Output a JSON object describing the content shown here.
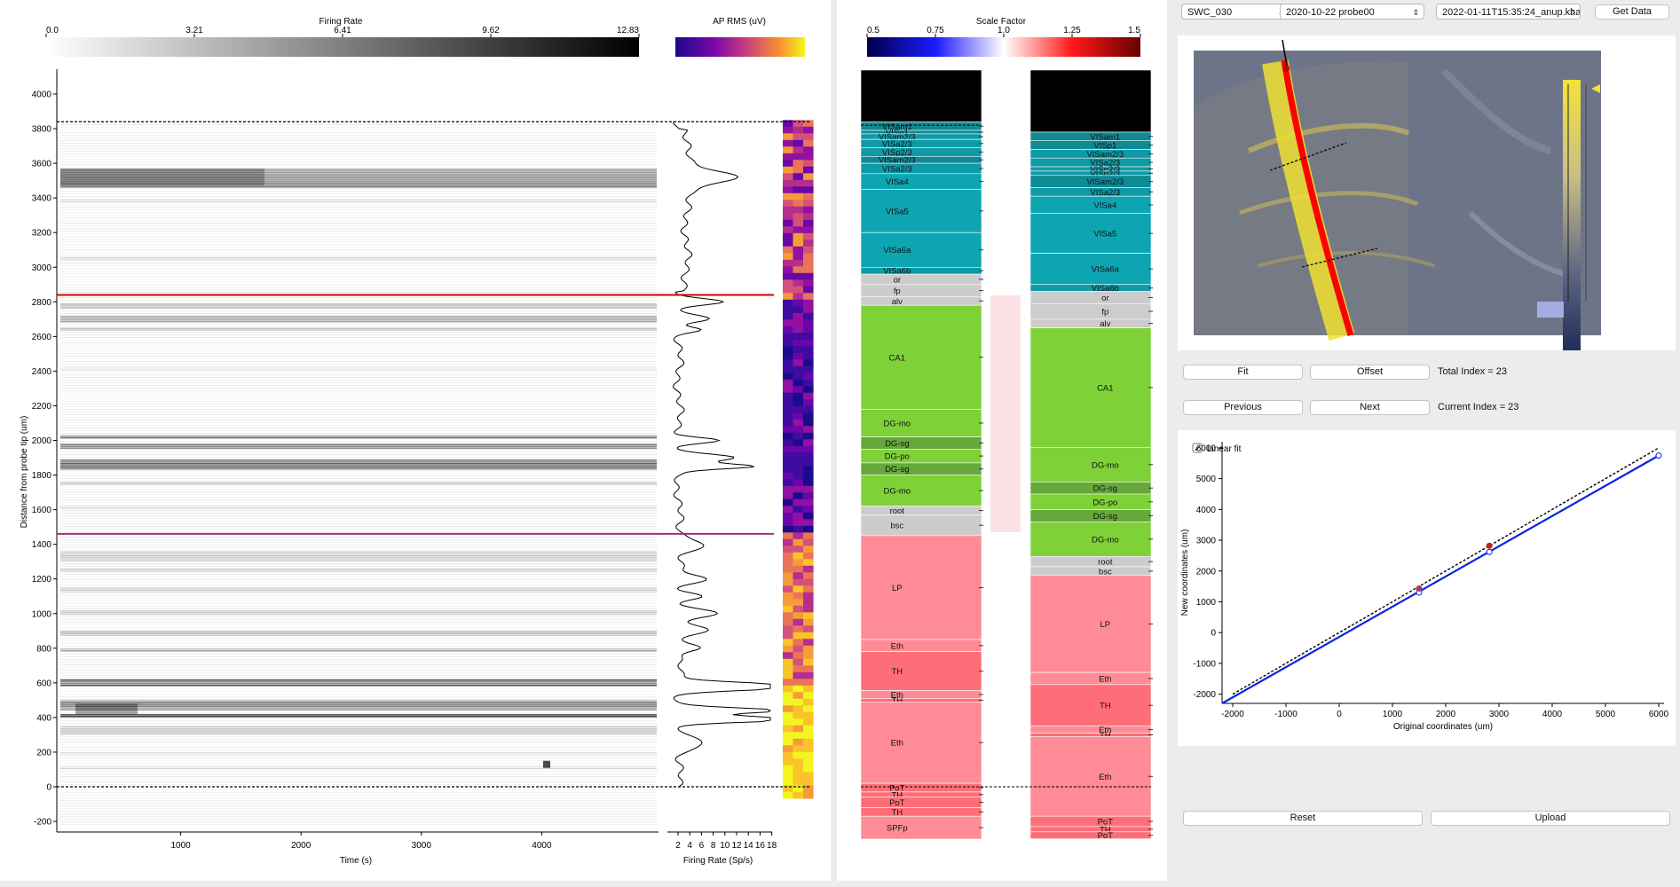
{
  "colors": {
    "accent_red": "#d40000",
    "accent_purple": "#a0307a",
    "fit_blue": "#0a22e6"
  },
  "panel1": {
    "fr_bar": {
      "title": "Firing Rate",
      "ticks": [
        "0.0",
        "3.21",
        "6.41",
        "9.62",
        "12.83"
      ]
    },
    "rms_bar": {
      "title": "AP RMS (uV)"
    },
    "raster": {
      "ylabel": "Distance from probe tip (um)",
      "xlabel": "Time (s)",
      "yticks": [
        "4000",
        "3800",
        "3600",
        "3400",
        "3200",
        "3000",
        "2800",
        "2600",
        "2400",
        "2200",
        "2000",
        "1800",
        "1600",
        "1400",
        "1200",
        "1000",
        "800",
        "600",
        "400",
        "200",
        "0",
        "-200"
      ],
      "xticks": [
        "1000",
        "2000",
        "3000",
        "4000"
      ]
    },
    "fr_trace": {
      "xlabel": "Firing Rate (Sp/s)",
      "xticks": [
        "2",
        "4",
        "6",
        "8",
        "10",
        "12",
        "14",
        "16",
        "18"
      ]
    }
  },
  "panel2": {
    "scale_bar": {
      "title": "Scale Factor",
      "ticks": [
        "0.5",
        "0.75",
        "1.0",
        "1.25",
        "1.5"
      ]
    },
    "left_regions": [
      {
        "label": "",
        "top": 4400,
        "bot": 3838,
        "color": "#000000"
      },
      {
        "label": "VISam1",
        "top": 3838,
        "bot": 3790,
        "color": "#0f8a95"
      },
      {
        "label": "VISp1",
        "top": 3790,
        "bot": 3770,
        "color": "#0f8a95"
      },
      {
        "label": "VISam2/3",
        "top": 3770,
        "bot": 3738,
        "color": "#0e9aa6"
      },
      {
        "label": "VISa2/3",
        "top": 3738,
        "bot": 3690,
        "color": "#0e9aa6"
      },
      {
        "label": "VISp2/3",
        "top": 3690,
        "bot": 3640,
        "color": "#0e9aa6"
      },
      {
        "label": "VISam2/3",
        "top": 3640,
        "bot": 3600,
        "color": "#0f8a95"
      },
      {
        "label": "VISa2/3",
        "top": 3600,
        "bot": 3540,
        "color": "#0e9aa6"
      },
      {
        "label": "VISa4",
        "top": 3540,
        "bot": 3450,
        "color": "#0ea5b2"
      },
      {
        "label": "VISa5",
        "top": 3450,
        "bot": 3200,
        "color": "#0ea5b2"
      },
      {
        "label": "VISa6a",
        "top": 3200,
        "bot": 3000,
        "color": "#0ea5b2"
      },
      {
        "label": "VISa6b",
        "top": 3000,
        "bot": 2960,
        "color": "#0e9aa6"
      },
      {
        "label": "or",
        "top": 2960,
        "bot": 2900,
        "color": "#cccccc"
      },
      {
        "label": "fp",
        "top": 2900,
        "bot": 2830,
        "color": "#cccccc"
      },
      {
        "label": "alv",
        "top": 2830,
        "bot": 2780,
        "color": "#cccccc"
      },
      {
        "label": "CA1",
        "top": 2780,
        "bot": 2180,
        "color": "#7ed137"
      },
      {
        "label": "DG-mo",
        "top": 2180,
        "bot": 2020,
        "color": "#7ed137"
      },
      {
        "label": "DG-sg",
        "top": 2020,
        "bot": 1950,
        "color": "#66a83b"
      },
      {
        "label": "DG-po",
        "top": 1950,
        "bot": 1870,
        "color": "#7ed137"
      },
      {
        "label": "DG-sg",
        "top": 1870,
        "bot": 1800,
        "color": "#66a83b"
      },
      {
        "label": "DG-mo",
        "top": 1800,
        "bot": 1620,
        "color": "#7ed137"
      },
      {
        "label": "root",
        "top": 1620,
        "bot": 1570,
        "color": "#cccccc"
      },
      {
        "label": "bsc",
        "top": 1570,
        "bot": 1450,
        "color": "#cccccc"
      },
      {
        "label": "LP",
        "top": 1450,
        "bot": 850,
        "color": "#fe8b96"
      },
      {
        "label": "Eth",
        "top": 850,
        "bot": 780,
        "color": "#fe8b96"
      },
      {
        "label": "TH",
        "top": 780,
        "bot": 555,
        "color": "#fe6e78"
      },
      {
        "label": "Eth",
        "top": 555,
        "bot": 510,
        "color": "#fe8b96"
      },
      {
        "label": "TH",
        "top": 510,
        "bot": 490,
        "color": "#fe6e78"
      },
      {
        "label": "Eth",
        "top": 490,
        "bot": 20,
        "color": "#fe8b96"
      },
      {
        "label": "PoT",
        "top": 20,
        "bot": -30,
        "color": "#fe6e78"
      },
      {
        "label": "TH",
        "top": -30,
        "bot": -60,
        "color": "#fe6e78"
      },
      {
        "label": "PoT",
        "top": -60,
        "bot": -120,
        "color": "#fe6e78"
      },
      {
        "label": "TH",
        "top": -120,
        "bot": -170,
        "color": "#fe6e78"
      },
      {
        "label": "SPFp",
        "top": -170,
        "bot": -400,
        "color": "#fe8b96"
      }
    ],
    "right_regions": [
      {
        "label": "",
        "top": 4400,
        "bot": 3780,
        "color": "#000000"
      },
      {
        "label": "VISam1",
        "top": 3780,
        "bot": 3730,
        "color": "#0f8a95"
      },
      {
        "label": "VISp1",
        "top": 3730,
        "bot": 3680,
        "color": "#0f8a95"
      },
      {
        "label": "VISam2/3",
        "top": 3680,
        "bot": 3630,
        "color": "#0e9aa6"
      },
      {
        "label": "VISa2/3",
        "top": 3630,
        "bot": 3580,
        "color": "#0e9aa6"
      },
      {
        "label": "VISp2/3",
        "top": 3580,
        "bot": 3555,
        "color": "#0e9aa6"
      },
      {
        "label": "VISp2/3",
        "top": 3555,
        "bot": 3530,
        "color": "#0e9aa6"
      },
      {
        "label": "VISam2/3",
        "top": 3530,
        "bot": 3460,
        "color": "#0f8a95"
      },
      {
        "label": "VISa2/3",
        "top": 3460,
        "bot": 3410,
        "color": "#0e9aa6"
      },
      {
        "label": "VISa4",
        "top": 3410,
        "bot": 3310,
        "color": "#0ea5b2"
      },
      {
        "label": "VISa5",
        "top": 3310,
        "bot": 3080,
        "color": "#0ea5b2"
      },
      {
        "label": "VISa6a",
        "top": 3080,
        "bot": 2900,
        "color": "#0ea5b2"
      },
      {
        "label": "VISa6b",
        "top": 2900,
        "bot": 2860,
        "color": "#0e9aa6"
      },
      {
        "label": "or",
        "top": 2860,
        "bot": 2790,
        "color": "#cccccc"
      },
      {
        "label": "fp",
        "top": 2790,
        "bot": 2700,
        "color": "#cccccc"
      },
      {
        "label": "alv",
        "top": 2700,
        "bot": 2650,
        "color": "#cccccc"
      },
      {
        "label": "CA1",
        "top": 2650,
        "bot": 1960,
        "color": "#7ed137"
      },
      {
        "label": "DG-mo",
        "top": 1960,
        "bot": 1760,
        "color": "#7ed137"
      },
      {
        "label": "DG-sg",
        "top": 1760,
        "bot": 1690,
        "color": "#66a83b"
      },
      {
        "label": "DG-po",
        "top": 1690,
        "bot": 1600,
        "color": "#7ed137"
      },
      {
        "label": "DG-sg",
        "top": 1600,
        "bot": 1530,
        "color": "#66a83b"
      },
      {
        "label": "DG-mo",
        "top": 1530,
        "bot": 1330,
        "color": "#7ed137"
      },
      {
        "label": "root",
        "top": 1330,
        "bot": 1270,
        "color": "#cccccc"
      },
      {
        "label": "bsc",
        "top": 1270,
        "bot": 1220,
        "color": "#cccccc"
      },
      {
        "label": "LP",
        "top": 1220,
        "bot": 660,
        "color": "#fe8b96"
      },
      {
        "label": "Eth",
        "top": 660,
        "bot": 590,
        "color": "#fe8b96"
      },
      {
        "label": "TH",
        "top": 590,
        "bot": 350,
        "color": "#fe6e78"
      },
      {
        "label": "Eth",
        "top": 350,
        "bot": 310,
        "color": "#fe8b96"
      },
      {
        "label": "TH",
        "top": 310,
        "bot": 290,
        "color": "#fe6e78"
      },
      {
        "label": "Eth",
        "top": 290,
        "bot": -170,
        "color": "#fe8b96"
      },
      {
        "label": "PoT",
        "top": -170,
        "bot": -230,
        "color": "#fe6e78"
      },
      {
        "label": "TH",
        "top": -230,
        "bot": -260,
        "color": "#fe6e78"
      },
      {
        "label": "PoT",
        "top": -260,
        "bot": -300,
        "color": "#fe6e78"
      }
    ]
  },
  "panel3": {
    "subject": "SWC_030",
    "session": "2020-10-22 probe00",
    "alignment": "2022-01-11T15:35:24_anup.kha",
    "get_data": "Get Data",
    "fit": "Fit",
    "offset": "Offset",
    "total_index": "Total Index = 23",
    "previous": "Previous",
    "next": "Next",
    "current_index": "Current Index = 23",
    "linear_fit": "Linear fit",
    "fit_plot": {
      "xlabel": "Original coordinates (um)",
      "ylabel": "New coordinates (um)",
      "xticks": [
        "-2000",
        "-1000",
        "0",
        "1000",
        "2000",
        "3000",
        "4000",
        "5000",
        "6000"
      ],
      "yticks": [
        "6000",
        "5000",
        "4000",
        "3000",
        "2000",
        "1000",
        "0",
        "-1000",
        "-2000"
      ]
    },
    "reset": "Reset",
    "upload": "Upload"
  },
  "chart_data": [
    {
      "type": "line",
      "xlabel": "Original coordinates (um)",
      "ylabel": "New coordinates (um)",
      "xlim": [
        -2200,
        6100
      ],
      "ylim": [
        -2300,
        6200
      ],
      "series": [
        {
          "name": "Linear fit",
          "style": "solid-blue",
          "x": [
            -2200,
            6000
          ],
          "y": [
            -2300,
            5750
          ]
        },
        {
          "style": "dashed-black",
          "x": [
            -2000,
            6000
          ],
          "y": [
            -2000,
            6000
          ]
        }
      ],
      "reference_points": [
        {
          "x": 1500,
          "y": 1430,
          "color": "#9a4050"
        },
        {
          "x": 2820,
          "y": 2820,
          "color": "#c02020"
        }
      ],
      "fit_points": [
        {
          "x": 1500,
          "y": 1300
        },
        {
          "x": 2820,
          "y": 2620
        },
        {
          "x": 6000,
          "y": 5750
        }
      ]
    }
  ]
}
